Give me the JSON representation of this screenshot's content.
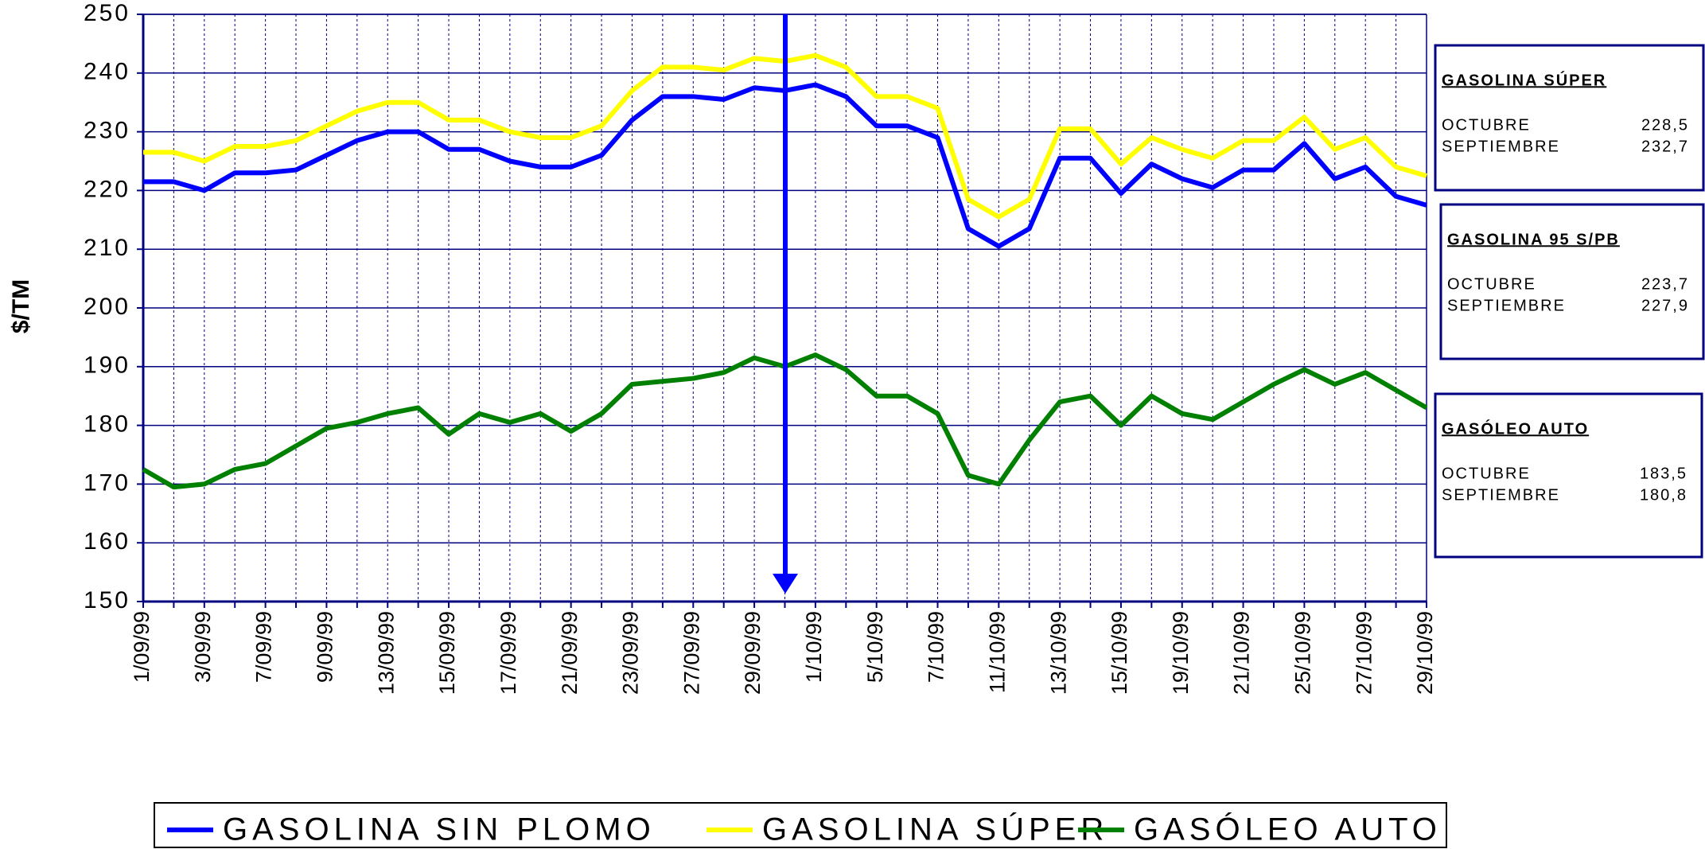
{
  "chart_data": {
    "type": "line",
    "y_label": "$/TM",
    "categories": [
      "1/09/99",
      null,
      "3/09/99",
      null,
      "7/09/99",
      null,
      "9/09/99",
      null,
      "13/09/99",
      null,
      "15/09/99",
      null,
      "17/09/99",
      null,
      "21/09/99",
      null,
      "23/09/99",
      null,
      "27/09/99",
      null,
      "29/09/99",
      null,
      "1/10/99",
      null,
      "5/10/99",
      null,
      "7/10/99",
      null,
      "11/10/99",
      null,
      "13/10/99",
      null,
      "15/10/99",
      null,
      "19/10/99",
      null,
      "21/10/99",
      null,
      "25/10/99",
      null,
      "27/10/99",
      null,
      "29/10/99"
    ],
    "series": [
      {
        "name": "GASOLINA SIN PLOMO",
        "color": "#0000ff",
        "values": [
          221.5,
          221.5,
          220,
          223,
          223,
          223.5,
          226,
          228.5,
          230,
          230,
          227,
          227,
          225,
          224,
          224,
          226,
          232,
          236,
          236,
          235.5,
          237.5,
          237,
          238,
          236,
          231,
          231,
          229,
          213.5,
          210.5,
          213.5,
          225.5,
          225.5,
          219.5,
          224.5,
          222,
          220.5,
          223.5,
          223.5,
          228,
          222,
          224,
          219,
          217.5
        ]
      },
      {
        "name": "GASOLINA SÚPER",
        "color": "#ffff00",
        "values": [
          226.5,
          226.5,
          225,
          227.5,
          227.5,
          228.5,
          231,
          233.5,
          235,
          235,
          232,
          232,
          230,
          229,
          229,
          231,
          237,
          241,
          241,
          240.5,
          242.5,
          242,
          243,
          241,
          236,
          236,
          234,
          218.5,
          215.5,
          218.5,
          230.5,
          230.5,
          224.5,
          229,
          227,
          225.5,
          228.5,
          228.5,
          232.5,
          227,
          229,
          224,
          222.5
        ]
      },
      {
        "name": "GASÓLEO AUTO",
        "color": "#008000",
        "values": [
          172.5,
          169.5,
          170,
          172.5,
          173.5,
          176.5,
          179.5,
          180.5,
          182,
          183,
          178.5,
          182,
          180.5,
          182,
          179,
          182,
          187,
          187.5,
          188,
          189,
          191.5,
          190,
          192,
          189.5,
          185,
          185,
          182,
          171.5,
          170,
          177.5,
          184,
          185,
          180,
          185,
          182,
          181,
          184,
          187,
          189.5,
          187,
          189,
          186,
          183
        ]
      }
    ],
    "ylim": [
      150,
      250
    ],
    "yticks": [
      150,
      160,
      170,
      180,
      190,
      200,
      210,
      220,
      230,
      240,
      250
    ],
    "grid": true,
    "panels": [
      {
        "title": "GASOLINA SÚPER",
        "rows": [
          [
            "OCTUBRE",
            "228,5"
          ],
          [
            "SEPTIEMBRE",
            "232,7"
          ]
        ]
      },
      {
        "title": "GASOLINA  95 S/PB",
        "rows": [
          [
            "OCTUBRE",
            "223,7"
          ],
          [
            "SEPTIEMBRE",
            "227,9"
          ]
        ]
      },
      {
        "title": "GASÓLEO  AUTO",
        "rows": [
          [
            "OCTUBRE",
            "183,5"
          ],
          [
            "SEPTIEMBRE",
            "180,8"
          ]
        ]
      }
    ]
  }
}
